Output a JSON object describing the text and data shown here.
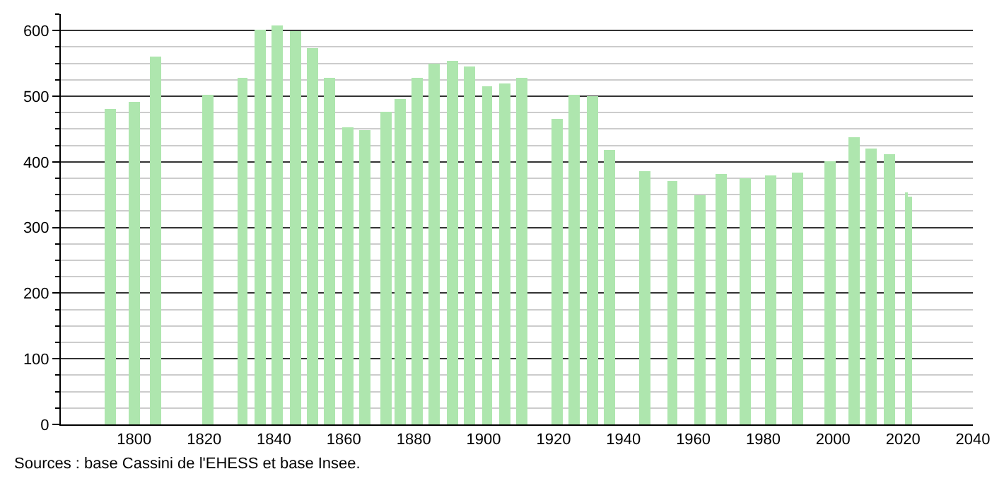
{
  "chart_data": {
    "type": "bar",
    "x": [
      1793,
      1800,
      1806,
      1821,
      1831,
      1836,
      1841,
      1846,
      1851,
      1856,
      1861,
      1866,
      1872,
      1876,
      1881,
      1886,
      1891,
      1896,
      1901,
      1906,
      1911,
      1921,
      1926,
      1931,
      1936,
      1946,
      1954,
      1962,
      1968,
      1975,
      1982,
      1990,
      1999,
      2006,
      2011,
      2016,
      2021,
      2022
    ],
    "values": [
      481,
      492,
      561,
      502,
      527,
      602,
      607,
      600,
      573,
      527,
      453,
      448,
      477,
      496,
      527,
      550,
      553,
      546,
      516,
      520,
      527,
      466,
      503,
      501,
      419,
      386,
      371,
      349,
      382,
      375,
      380,
      384,
      401,
      438,
      421,
      412,
      354,
      346
    ],
    "color": "#aee6ae",
    "xlim": [
      1779,
      2040
    ],
    "xticks": [
      1800,
      1820,
      1840,
      1860,
      1880,
      1900,
      1920,
      1940,
      1960,
      1980,
      2000,
      2020,
      2040
    ],
    "ylim": [
      0,
      625
    ],
    "yticks": [
      0,
      100,
      200,
      300,
      400,
      500,
      600
    ],
    "grid": "y",
    "annotations": [
      "Sources : base Cassini de l'EHESS et base Insee."
    ]
  }
}
